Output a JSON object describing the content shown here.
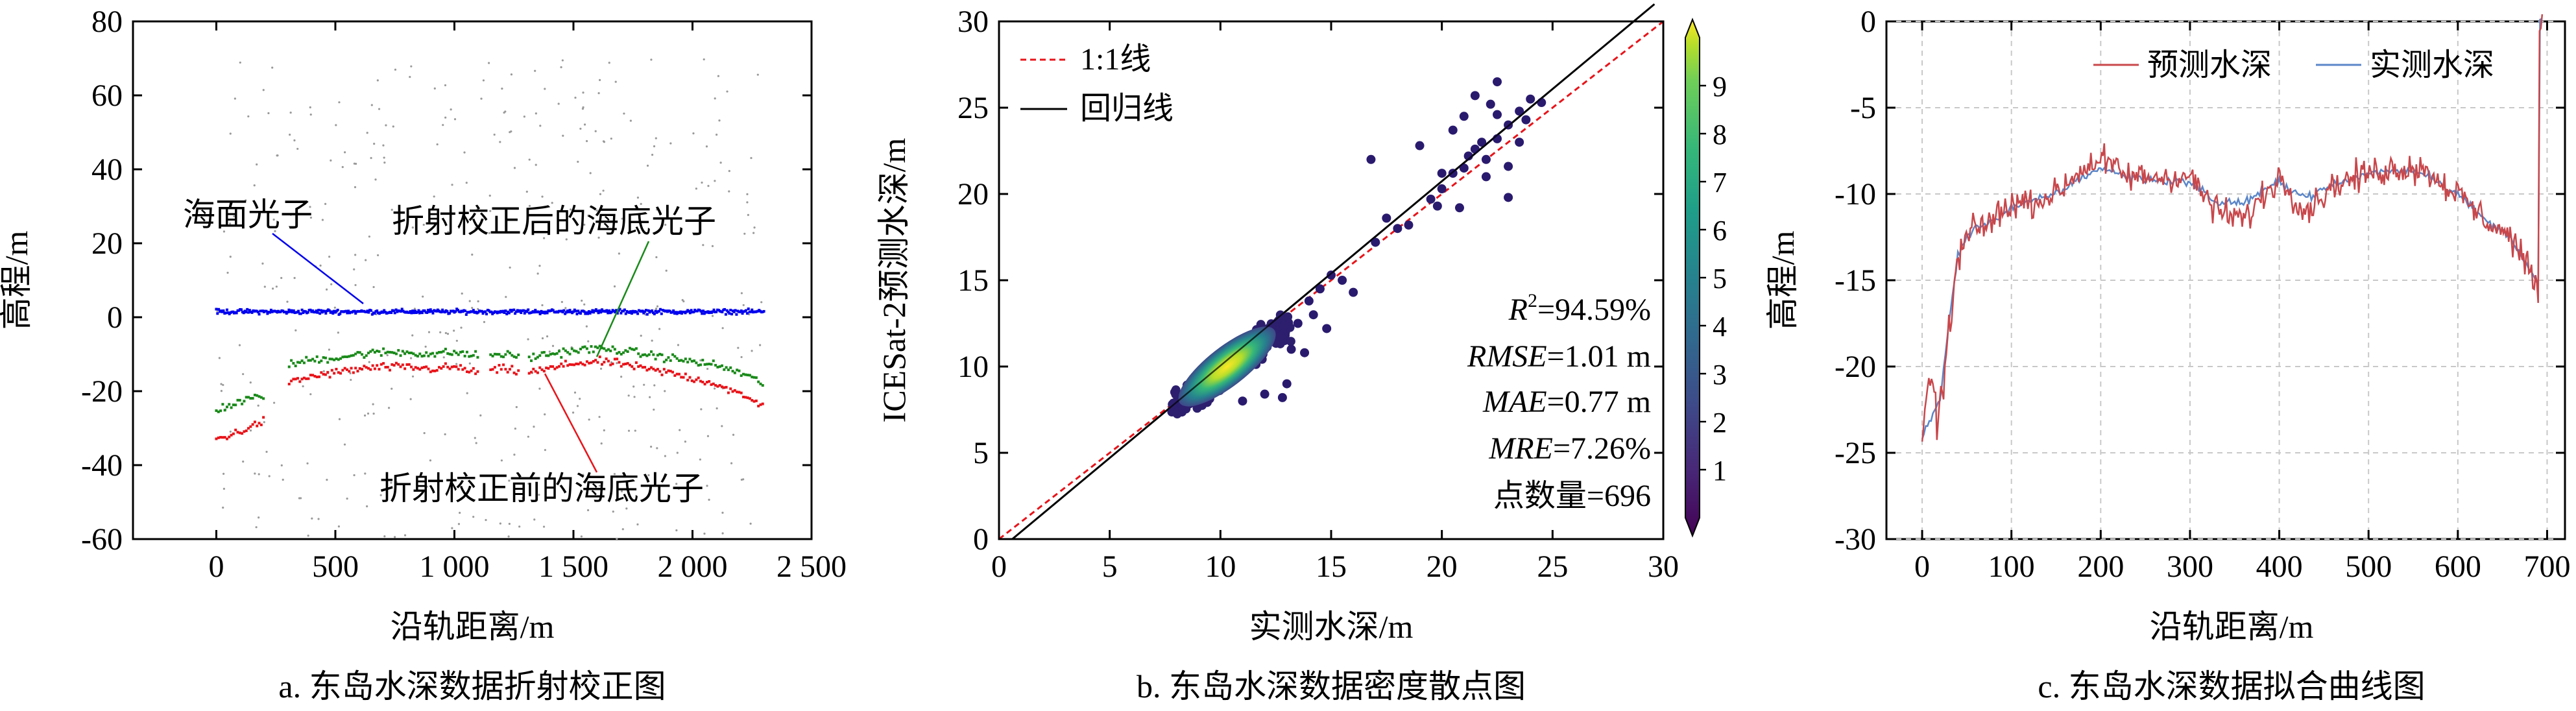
{
  "chart_data": [
    {
      "type": "scatter",
      "caption": "a. 东岛水深数据折射校正图",
      "xlabel": "沿轨距离/m",
      "ylabel": "高程/m",
      "xlim": [
        -350,
        2500
      ],
      "ylim": [
        -60,
        80
      ],
      "xticks": [
        0,
        500,
        1000,
        1500,
        2000,
        2500
      ],
      "xtick_labels": [
        "0",
        "500",
        "1 000",
        "1 500",
        "2 000",
        "2 500"
      ],
      "yticks": [
        -60,
        -40,
        -20,
        0,
        20,
        40,
        60,
        80
      ],
      "grid": false,
      "annotations": [
        {
          "text": "海面光子",
          "color": "#0000ee",
          "target": [
            720,
            2
          ]
        },
        {
          "text": "折射校正后的海底光子",
          "color": "#1a8a1a",
          "target": [
            1500,
            -9
          ]
        },
        {
          "text": "折射校正前的海底光子",
          "color": "#e8141a",
          "target": [
            1310,
            -15
          ]
        }
      ],
      "series": [
        {
          "name": "海面光子",
          "color": "#0000ee",
          "x": [
            0,
            2300
          ],
          "y": [
            1.5,
            1.5
          ]
        },
        {
          "name": "折射校正后的海底光子",
          "color": "#1a8a1a",
          "x": [
            0,
            100,
            200,
            220,
            300,
            400,
            500,
            600,
            700,
            800,
            900,
            1000,
            1100,
            1200,
            1300,
            1400,
            1500,
            1600,
            1700,
            1800,
            1900,
            2000,
            2100,
            2200,
            2300
          ],
          "y": [
            -25,
            -23,
            -21,
            null,
            -13,
            -11.5,
            -11,
            -10,
            -9.5,
            -9.5,
            -10,
            -9.5,
            -10.5,
            -10,
            -11,
            -10,
            -9,
            -8.5,
            -9,
            -10,
            -11,
            -12,
            -13,
            -15,
            -18
          ]
        },
        {
          "name": "折射校正前的海底光子",
          "color": "#e8141a",
          "x": [
            0,
            100,
            200,
            220,
            300,
            400,
            500,
            600,
            700,
            800,
            900,
            1000,
            1100,
            1200,
            1300,
            1400,
            1500,
            1600,
            1700,
            1800,
            1900,
            2000,
            2100,
            2200,
            2300
          ],
          "y": [
            -33,
            -31,
            -28,
            null,
            -18,
            -16,
            -15,
            -14,
            -13.5,
            -13.5,
            -14,
            -13.5,
            -15,
            -14,
            -15,
            -14,
            -12.5,
            -12,
            -12.5,
            -14,
            -15,
            -16.5,
            -18,
            -21,
            -24
          ]
        }
      ]
    },
    {
      "type": "scatter",
      "caption": "b. 东岛水深数据密度散点图",
      "xlabel": "实测水深/m",
      "ylabel": "ICESat-2预测水深/m",
      "xlim": [
        0,
        30
      ],
      "ylim": [
        0,
        30
      ],
      "xticks": [
        0,
        5,
        10,
        15,
        20,
        25,
        30
      ],
      "yticks": [
        0,
        5,
        10,
        15,
        20,
        25,
        30
      ],
      "legend": {
        "placement": "top-left",
        "entries": [
          "1:1线",
          "回归线"
        ]
      },
      "lines": [
        {
          "name": "1:1线",
          "color": "#e8141a",
          "style": "dashed",
          "x": [
            0,
            30
          ],
          "y": [
            0,
            30
          ]
        },
        {
          "name": "回归线",
          "color": "#000000",
          "style": "solid",
          "x": [
            0.6,
            29.6
          ],
          "y": [
            0,
            31
          ]
        }
      ],
      "stats": [
        "R²=94.59%",
        "RMSE=1.01 m",
        "MAE=0.77 m",
        "MRE=7.26%",
        "点数量=696"
      ],
      "stats_parts": [
        {
          "label": "R",
          "sup": "2",
          "value": "=94.59%"
        },
        {
          "label": "RMSE",
          "sup": "",
          "value": "=1.01 m"
        },
        {
          "label": "MAE",
          "sup": "",
          "value": "=0.77 m"
        },
        {
          "label": "MRE",
          "sup": "",
          "value": "=7.26%"
        },
        {
          "label": "",
          "sup": "",
          "value": "点数量=696"
        }
      ],
      "colorbar": {
        "range": [
          0,
          10
        ],
        "ticks": [
          1,
          2,
          3,
          4,
          5,
          6,
          7,
          8,
          9
        ],
        "colormap": "viridis"
      },
      "density_cluster": {
        "x_center": 10.3,
        "y_center": 10.0,
        "extent_x": [
          7.8,
          13.2
        ],
        "extent_y": [
          7.2,
          13.2
        ]
      },
      "scatter_points": [
        [
          13.5,
          12.5
        ],
        [
          14.0,
          13.8
        ],
        [
          14.5,
          14.5
        ],
        [
          15.0,
          15.3
        ],
        [
          14.2,
          13.0
        ],
        [
          15.5,
          15.0
        ],
        [
          16.0,
          14.3
        ],
        [
          14.8,
          12.2
        ],
        [
          13.2,
          11.0
        ],
        [
          13.8,
          10.8
        ],
        [
          12.8,
          8.2
        ],
        [
          13.0,
          9.0
        ],
        [
          11.0,
          8.0
        ],
        [
          12.0,
          8.4
        ],
        [
          17.0,
          17.2
        ],
        [
          17.5,
          18.6
        ],
        [
          18.0,
          18.0
        ],
        [
          19.5,
          19.7
        ],
        [
          20.0,
          20.3
        ],
        [
          20.5,
          21.2
        ],
        [
          21.0,
          21.5
        ],
        [
          21.5,
          22.6
        ],
        [
          22.0,
          22.0
        ],
        [
          22.5,
          23.2
        ],
        [
          23.0,
          24.0
        ],
        [
          23.5,
          24.8
        ],
        [
          24.0,
          25.5
        ],
        [
          22.5,
          26.5
        ],
        [
          21.5,
          25.7
        ],
        [
          20.5,
          23.7
        ],
        [
          19.0,
          22.8
        ],
        [
          21.0,
          24.5
        ],
        [
          22.0,
          21.0
        ],
        [
          23.0,
          21.6
        ],
        [
          23.0,
          19.8
        ],
        [
          20.0,
          21.2
        ],
        [
          21.8,
          23.0
        ],
        [
          18.5,
          18.2
        ],
        [
          24.5,
          25.3
        ],
        [
          23.5,
          23.0
        ],
        [
          22.5,
          24.6
        ],
        [
          20.8,
          19.2
        ],
        [
          16.8,
          22.0
        ],
        [
          23.8,
          24.3
        ],
        [
          21.2,
          22.2
        ],
        [
          19.8,
          19.3
        ],
        [
          22.2,
          25.2
        ]
      ]
    },
    {
      "type": "line",
      "caption": "c. 东岛水深数据拟合曲线图",
      "xlabel": "沿轨距离/m",
      "ylabel": "高程/m",
      "xlim": [
        -40,
        720
      ],
      "ylim": [
        -30,
        0
      ],
      "xticks": [
        0,
        100,
        200,
        300,
        400,
        500,
        600,
        700
      ],
      "yticks": [
        -30,
        -25,
        -20,
        -15,
        -10,
        -5,
        0
      ],
      "grid": true,
      "legend": {
        "placement": "top-right",
        "entries": [
          "预测水深",
          "实测水深"
        ]
      },
      "series": [
        {
          "name": "预测水深",
          "color": "#c8474b",
          "x": [
            0,
            10,
            20,
            30,
            40,
            50,
            60,
            80,
            100,
            120,
            150,
            180,
            200,
            230,
            260,
            300,
            330,
            360,
            400,
            430,
            460,
            500,
            530,
            560,
            600,
            630,
            660,
            690
          ],
          "y": [
            -24,
            -21,
            -23,
            -18,
            -14,
            -12.5,
            -12,
            -11.5,
            -10.5,
            -10.5,
            -10,
            -8.5,
            -8,
            -9,
            -9,
            -9,
            -11,
            -11.5,
            -9,
            -11,
            -9.5,
            -8.8,
            -8.5,
            -8.5,
            -10,
            -11.5,
            -12.5,
            -15.5
          ]
        },
        {
          "name": "实测水深",
          "color": "#5b86c8",
          "x": [
            0,
            10,
            20,
            30,
            40,
            50,
            60,
            80,
            100,
            120,
            150,
            180,
            200,
            230,
            260,
            300,
            330,
            360,
            400,
            430,
            460,
            500,
            530,
            560,
            600,
            630,
            660,
            690
          ],
          "y": [
            -24,
            -23,
            -22,
            -17.5,
            -13.5,
            -12.5,
            -12,
            -11.5,
            -10.8,
            -10.5,
            -10,
            -9,
            -8.5,
            -9,
            -9.2,
            -9.3,
            -10.5,
            -10.5,
            -9.3,
            -10.2,
            -9.5,
            -8.8,
            -8.6,
            -8.7,
            -10,
            -11.5,
            -12.5,
            -15.3
          ]
        }
      ]
    }
  ]
}
